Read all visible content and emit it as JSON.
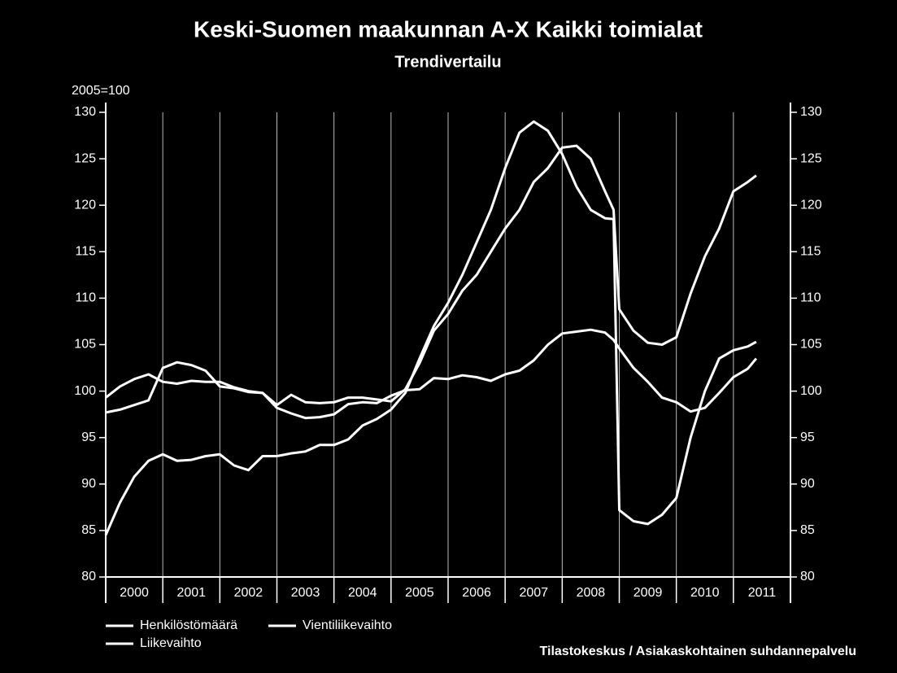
{
  "chart_data": {
    "type": "line",
    "title": "Keski-Suomen maakunnan A-X Kaikki toimialat",
    "subtitle": "Trendivertailu",
    "y_label": "2005=100",
    "source": "Tilastokeskus / Asiakaskohtainen suhdannepalvelu",
    "categories": [
      "2000",
      "2001",
      "2002",
      "2003",
      "2004",
      "2005",
      "2006",
      "2007",
      "2008",
      "2009",
      "2010",
      "2011"
    ],
    "x": [
      2000,
      2000.25,
      2000.5,
      2000.75,
      2001,
      2001.25,
      2001.5,
      2001.75,
      2002,
      2002.25,
      2002.5,
      2002.75,
      2003,
      2003.25,
      2003.5,
      2003.75,
      2004,
      2004.25,
      2004.5,
      2004.75,
      2005,
      2005.25,
      2005.5,
      2005.75,
      2006,
      2006.25,
      2006.5,
      2006.75,
      2007,
      2007.25,
      2007.5,
      2007.75,
      2008,
      2008.25,
      2008.5,
      2008.75,
      2008.9,
      2009,
      2009.25,
      2009.5,
      2009.75,
      2010,
      2010.25,
      2010.5,
      2010.75,
      2011,
      2011.25,
      2011.4
    ],
    "xlim": [
      2000,
      2012
    ],
    "xticks": [
      2000,
      2001,
      2002,
      2003,
      2004,
      2005,
      2006,
      2007,
      2008,
      2009,
      2010,
      2011,
      2012
    ],
    "ylim": [
      80,
      130
    ],
    "yticks": [
      80,
      85,
      90,
      95,
      100,
      105,
      110,
      115,
      120,
      125,
      130
    ],
    "y2lim": [
      80,
      130
    ],
    "y2ticks": [
      80,
      85,
      90,
      95,
      100,
      105,
      110,
      115,
      120,
      125,
      130
    ],
    "grid": "x",
    "series": [
      {
        "name": "Henkilöstömäärä",
        "color": "#ffffff",
        "values": [
          99.3,
          100.5,
          101.3,
          101.8,
          101.0,
          100.8,
          101.1,
          101.0,
          101.0,
          100.4,
          100.0,
          99.8,
          98.2,
          97.6,
          97.1,
          97.2,
          97.5,
          98.6,
          98.8,
          98.7,
          99.5,
          100.1,
          100.2,
          101.4,
          101.3,
          101.7,
          101.5,
          101.1,
          101.8,
          102.2,
          103.3,
          105.0,
          106.2,
          106.4,
          106.6,
          106.3,
          105.5,
          104.6,
          102.5,
          101.0,
          99.3,
          98.8,
          97.8,
          98.2,
          99.8,
          101.5,
          102.4,
          103.5
        ]
      },
      {
        "name": "Vientiliikevaihto",
        "color": "#ffffff",
        "values": [
          84.5,
          88.0,
          90.8,
          92.5,
          93.2,
          92.5,
          92.6,
          93.0,
          93.2,
          92.0,
          91.5,
          93.0,
          93.0,
          93.3,
          93.5,
          94.2,
          94.2,
          94.8,
          96.3,
          97.0,
          98.0,
          99.8,
          103.5,
          107.0,
          109.5,
          112.5,
          116.0,
          119.5,
          124.0,
          127.8,
          129.0,
          128.0,
          125.5,
          122.0,
          119.5,
          118.6,
          118.5,
          87.2,
          86.0,
          85.7,
          86.7,
          88.5,
          95.0,
          100.0,
          103.5,
          104.4,
          104.8,
          105.3
        ]
      },
      {
        "name": "Liikevaihto",
        "color": "#ffffff",
        "values": [
          97.7,
          98.0,
          98.5,
          99.0,
          102.5,
          103.1,
          102.8,
          102.2,
          100.5,
          100.3,
          99.9,
          99.8,
          98.5,
          99.6,
          98.8,
          98.7,
          98.8,
          99.3,
          99.3,
          99.1,
          98.9,
          100.2,
          103.0,
          106.5,
          108.3,
          110.8,
          112.5,
          115.0,
          117.5,
          119.5,
          122.5,
          124.0,
          126.2,
          126.4,
          125.0,
          121.5,
          119.5,
          108.8,
          106.5,
          105.2,
          105.0,
          105.8,
          110.5,
          114.5,
          117.5,
          121.5,
          122.5,
          123.2
        ]
      }
    ]
  }
}
